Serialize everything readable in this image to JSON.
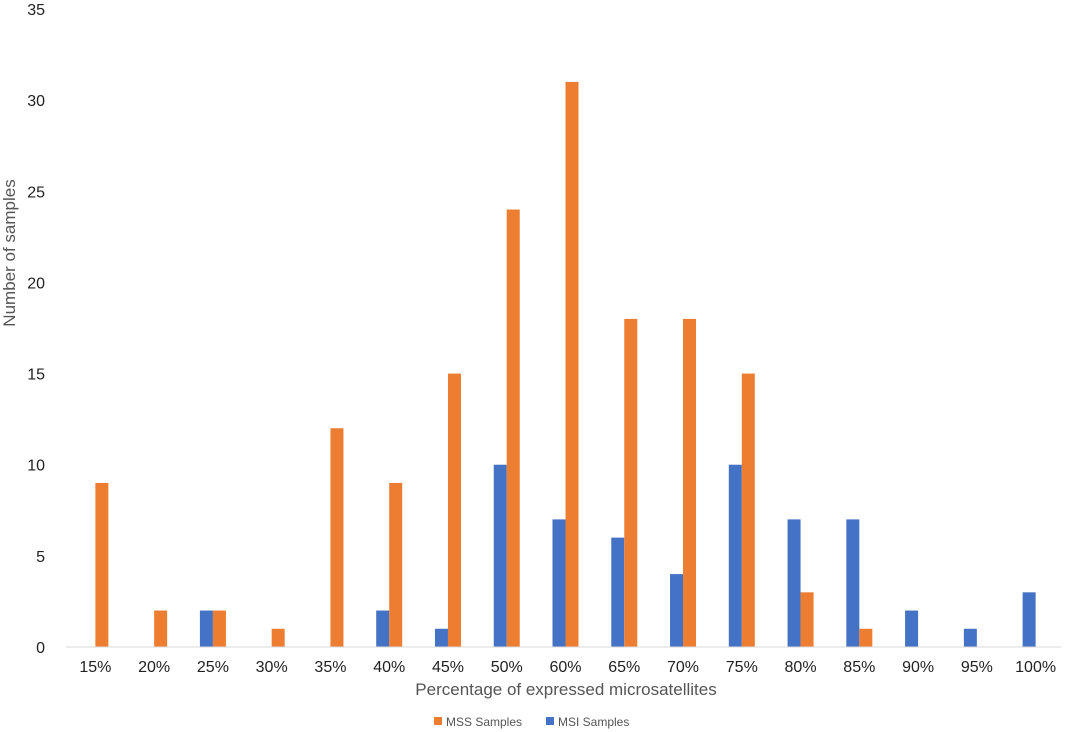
{
  "chart_data": {
    "type": "bar",
    "title": "",
    "xlabel": "Percentage of expressed microsatellites",
    "ylabel": "Number of samples",
    "categories": [
      "15%",
      "20%",
      "25%",
      "30%",
      "35%",
      "40%",
      "45%",
      "50%",
      "60%",
      "65%",
      "70%",
      "75%",
      "80%",
      "85%",
      "90%",
      "95%",
      "100%"
    ],
    "series": [
      {
        "name": "MSI Samples",
        "color": "#4472C4",
        "values": [
          0,
          0,
          2,
          0,
          0,
          2,
          1,
          10,
          7,
          6,
          4,
          10,
          7,
          7,
          2,
          1,
          3
        ]
      },
      {
        "name": "MSS Samples",
        "color": "#ED7D31",
        "values": [
          9,
          2,
          2,
          1,
          12,
          9,
          15,
          24,
          31,
          18,
          18,
          15,
          3,
          1,
          0,
          0,
          0
        ]
      }
    ],
    "ylim": [
      0,
      35
    ],
    "yticks": [
      0,
      5,
      10,
      15,
      20,
      25,
      30,
      35
    ],
    "grid": false,
    "legend": {
      "position": "bottom",
      "entries": [
        "MSS Samples",
        "MSI Samples"
      ]
    }
  }
}
